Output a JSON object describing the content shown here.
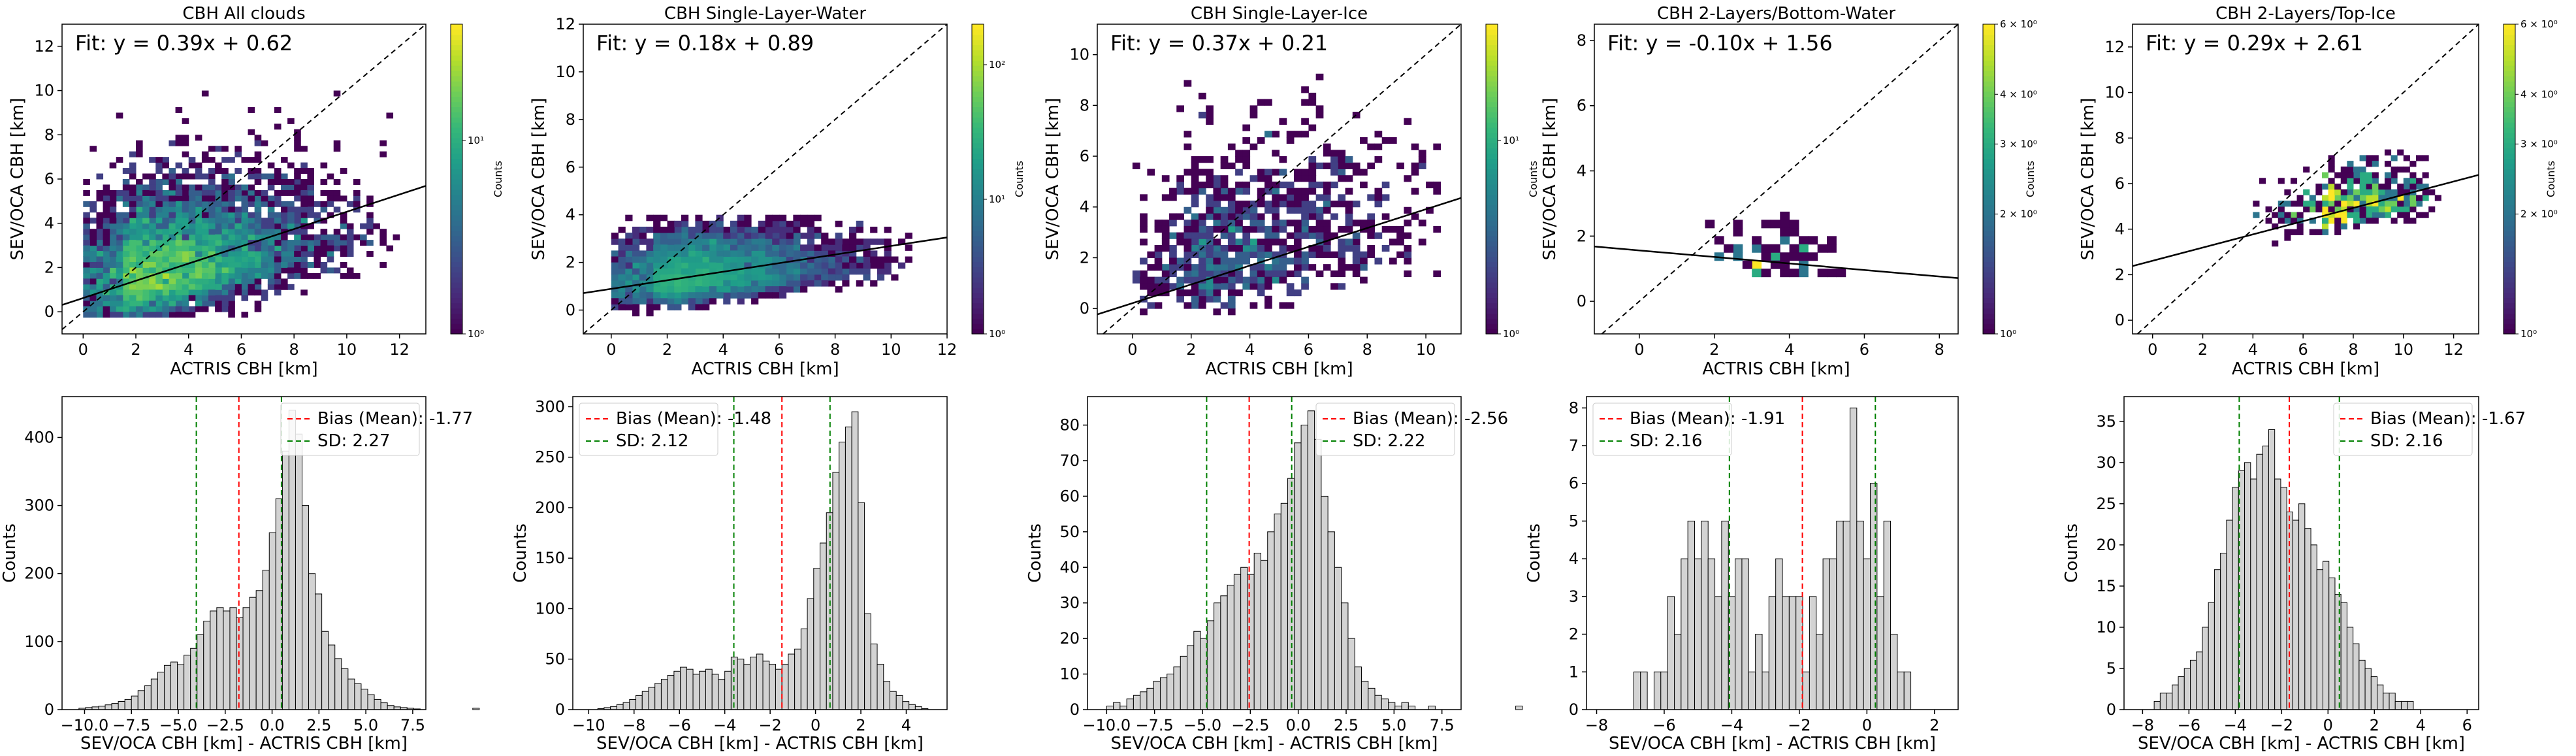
{
  "figure": {
    "colormap": "viridis",
    "hist_bar_color": "#d3d3d3",
    "bias_line_color": "#ff0000",
    "sd_line_color": "#008000"
  },
  "chart_data": [
    {
      "type": "heatmap",
      "title": "CBH All clouds",
      "xlabel": "ACTRIS CBH [km]",
      "ylabel": "SEV/OCA CBH [km]",
      "cbar_label": "Counts",
      "fit_text": "Fit: y = 0.39x + 0.62",
      "fit": {
        "slope": 0.39,
        "intercept": 0.62
      },
      "xlim": [
        -0.8,
        13.0
      ],
      "ylim": [
        -1.0,
        13.0
      ],
      "xticks": [
        0,
        2,
        4,
        6,
        8,
        10,
        12
      ],
      "yticks": [
        0,
        2,
        4,
        6,
        8,
        10,
        12
      ],
      "cbar": {
        "scale": "log",
        "range": [
          1,
          40
        ],
        "ticks": [
          {
            "v": 1,
            "label": "10⁰"
          },
          {
            "v": 10,
            "label": "10¹"
          }
        ]
      },
      "cloud": {
        "cx": 1.5,
        "cy": 0.8,
        "sx": 3.5,
        "sy": 2.2,
        "xmin": 0.0,
        "xmax": 12.0,
        "ymin": -0.2,
        "ymax": 11.5,
        "n": 5000,
        "seed": 11
      }
    },
    {
      "type": "heatmap",
      "title": "CBH Single-Layer-Water",
      "xlabel": "ACTRIS CBH [km]",
      "ylabel": "SEV/OCA CBH [km]",
      "cbar_label": "Counts",
      "fit_text": "Fit: y = 0.18x + 0.89",
      "fit": {
        "slope": 0.18,
        "intercept": 0.89
      },
      "xlim": [
        -1.0,
        12.0
      ],
      "ylim": [
        -1.0,
        12.0
      ],
      "xticks": [
        0,
        2,
        4,
        6,
        8,
        10,
        12
      ],
      "yticks": [
        0,
        2,
        4,
        6,
        8,
        10,
        12
      ],
      "cbar": {
        "scale": "log",
        "range": [
          1,
          200
        ],
        "ticks": [
          {
            "v": 1,
            "label": "10⁰"
          },
          {
            "v": 10,
            "label": "10¹"
          },
          {
            "v": 100,
            "label": "10²"
          }
        ]
      },
      "cloud": {
        "cx": 1.6,
        "cy": 0.9,
        "sx": 3.0,
        "sy": 1.1,
        "xmin": 0.0,
        "xmax": 11.0,
        "ymin": -0.2,
        "ymax": 4.0,
        "n": 4000,
        "seed": 23
      }
    },
    {
      "type": "heatmap",
      "title": "CBH Single-Layer-Ice",
      "xlabel": "ACTRIS CBH [km]",
      "ylabel": "SEV/OCA CBH [km]",
      "cbar_label": "Counts",
      "fit_text": "Fit: y = 0.37x + 0.21",
      "fit": {
        "slope": 0.37,
        "intercept": 0.21
      },
      "xlim": [
        -1.2,
        11.2
      ],
      "ylim": [
        -1.0,
        11.2
      ],
      "xticks": [
        0,
        2,
        4,
        6,
        8,
        10
      ],
      "yticks": [
        0,
        2,
        4,
        6,
        8,
        10
      ],
      "cbar": {
        "scale": "log",
        "range": [
          1,
          40
        ],
        "ticks": [
          {
            "v": 1,
            "label": "10⁰"
          },
          {
            "v": 10,
            "label": "10¹"
          }
        ]
      },
      "cloud": {
        "cx": 2.0,
        "cy": 1.0,
        "sx": 3.5,
        "sy": 2.5,
        "xmin": 0.0,
        "xmax": 10.5,
        "ymin": -0.2,
        "ymax": 10.0,
        "n": 1000,
        "seed": 37
      }
    },
    {
      "type": "heatmap",
      "title": "CBH 2-Layers/Bottom-Water",
      "xlabel": "ACTRIS CBH [km]",
      "ylabel": "SEV/OCA CBH [km]",
      "cbar_label": "Counts",
      "fit_text": "Fit: y = -0.10x + 1.56",
      "fit": {
        "slope": -0.1,
        "intercept": 1.56
      },
      "xlim": [
        -1.2,
        8.5
      ],
      "ylim": [
        -1.0,
        8.5
      ],
      "xticks": [
        0,
        2,
        4,
        6,
        8
      ],
      "yticks": [
        0,
        2,
        4,
        6,
        8
      ],
      "cbar": {
        "scale": "log",
        "range": [
          1,
          6
        ],
        "ticks": [
          {
            "v": 1,
            "label": "10⁰"
          },
          {
            "v": 2,
            "label": "2 × 10⁰"
          },
          {
            "v": 3,
            "label": "3 × 10⁰"
          },
          {
            "v": 4,
            "label": "4 × 10⁰"
          },
          {
            "v": 6,
            "label": "6 × 10⁰"
          }
        ]
      },
      "cloud": {
        "cx": 3.0,
        "cy": 1.2,
        "sx": 1.6,
        "sy": 0.7,
        "xmin": 0.5,
        "xmax": 5.8,
        "ymin": 0.0,
        "ymax": 2.8,
        "n": 70,
        "seed": 53
      }
    },
    {
      "type": "heatmap",
      "title": "CBH 2-Layers/Top-Ice",
      "xlabel": "ACTRIS CBH [km]",
      "ylabel": "SEV/OCA CBH [km]",
      "cbar_label": "Counts",
      "fit_text": "Fit: y = 0.29x + 2.61",
      "fit": {
        "slope": 0.29,
        "intercept": 2.61
      },
      "xlim": [
        -0.8,
        13.0
      ],
      "ylim": [
        -0.6,
        13.0
      ],
      "xticks": [
        0,
        2,
        4,
        6,
        8,
        10,
        12
      ],
      "yticks": [
        0,
        2,
        4,
        6,
        8,
        10,
        12
      ],
      "cbar": {
        "scale": "log",
        "range": [
          1,
          6
        ],
        "ticks": [
          {
            "v": 1,
            "label": "10⁰"
          },
          {
            "v": 2,
            "label": "2 × 10⁰"
          },
          {
            "v": 3,
            "label": "3 × 10⁰"
          },
          {
            "v": 4,
            "label": "4 × 10⁰"
          },
          {
            "v": 6,
            "label": "6 × 10⁰"
          }
        ]
      },
      "cloud": {
        "cx": 6.8,
        "cy": 4.5,
        "sx": 2.6,
        "sy": 1.1,
        "xmin": 0.5,
        "xmax": 11.5,
        "ymin": 0.5,
        "ymax": 7.5,
        "n": 500,
        "seed": 71
      }
    },
    {
      "type": "bar",
      "xlabel": "SEV/OCA CBH [km] - ACTRIS CBH [km]",
      "ylabel": "Counts",
      "legend": {
        "bias": "Bias (Mean): -1.77",
        "sd": "SD: 2.27",
        "position": "top-right"
      },
      "bias": -1.77,
      "sd": 2.27,
      "xlim": [
        -11.2,
        8.2
      ],
      "ylim": [
        0,
        460
      ],
      "xticks": [
        -10.0,
        -7.5,
        -5.0,
        -2.5,
        0.0,
        2.5,
        5.0,
        7.5
      ],
      "xtick_labels": [
        "−10.0",
        "−7.5",
        "−5.0",
        "−2.5",
        "0.0",
        "2.5",
        "5.0",
        "7.5"
      ],
      "yticks": [
        0,
        100,
        200,
        300,
        400
      ],
      "bins": {
        "start": -10.3,
        "width": 0.35,
        "values": [
          2,
          3,
          4,
          5,
          7,
          9,
          12,
          15,
          20,
          28,
          35,
          45,
          55,
          65,
          70,
          66,
          80,
          90,
          110,
          130,
          145,
          150,
          145,
          150,
          135,
          150,
          165,
          175,
          205,
          260,
          310,
          380,
          440,
          405,
          300,
          200,
          170,
          115,
          95,
          75,
          60,
          45,
          38,
          30,
          22,
          15,
          10,
          6,
          4,
          3,
          2,
          1,
          0,
          0,
          0,
          0,
          0,
          0,
          0,
          0,
          2,
          0
        ]
      }
    },
    {
      "type": "bar",
      "xlabel": "SEV/OCA CBH [km] - ACTRIS CBH [km]",
      "ylabel": "Counts",
      "legend": {
        "bias": "Bias (Mean): -1.48",
        "sd": "SD: 2.12",
        "position": "top-left"
      },
      "bias": -1.48,
      "sd": 2.12,
      "xlim": [
        -10.7,
        5.8
      ],
      "ylim": [
        0,
        310
      ],
      "xticks": [
        -10,
        -8,
        -6,
        -4,
        -2,
        0,
        2,
        4
      ],
      "xtick_labels": [
        "−10",
        "−8",
        "−6",
        "−4",
        "−2",
        "0",
        "2",
        "4"
      ],
      "yticks": [
        0,
        50,
        100,
        150,
        200,
        250,
        300
      ],
      "bins": {
        "start": -9.6,
        "width": 0.28,
        "values": [
          1,
          2,
          3,
          5,
          7,
          10,
          14,
          18,
          22,
          26,
          30,
          34,
          38,
          42,
          40,
          35,
          38,
          40,
          35,
          30,
          38,
          52,
          50,
          45,
          52,
          55,
          48,
          45,
          40,
          45,
          55,
          60,
          80,
          110,
          140,
          165,
          195,
          235,
          265,
          280,
          295,
          205,
          95,
          65,
          45,
          28,
          18,
          14,
          8,
          5,
          3,
          1
        ]
      }
    },
    {
      "type": "bar",
      "xlabel": "SEV/OCA CBH [km] - ACTRIS CBH [km]",
      "ylabel": "Counts",
      "legend": {
        "bias": "Bias (Mean): -2.56",
        "sd": "SD: 2.22",
        "position": "top-right"
      },
      "bias": -2.56,
      "sd": 2.22,
      "xlim": [
        -11.0,
        8.5
      ],
      "ylim": [
        0,
        88
      ],
      "xticks": [
        -10.0,
        -7.5,
        -5.0,
        -2.5,
        0.0,
        2.5,
        5.0,
        7.5
      ],
      "xtick_labels": [
        "−10.0",
        "−7.5",
        "−5.0",
        "−2.5",
        "0.0",
        "2.5",
        "5.0",
        "7.5"
      ],
      "yticks": [
        0,
        10,
        20,
        30,
        40,
        50,
        60,
        70,
        80
      ],
      "bins": {
        "start": -10.0,
        "width": 0.35,
        "values": [
          1,
          2,
          1,
          3,
          4,
          5,
          6,
          8,
          9,
          10,
          12,
          15,
          18,
          22,
          20,
          25,
          30,
          32,
          35,
          38,
          40,
          38,
          44,
          42,
          50,
          55,
          58,
          65,
          75,
          80,
          84,
          76,
          60,
          50,
          40,
          30,
          20,
          12,
          8,
          6,
          4,
          3,
          2,
          1,
          2,
          1,
          0,
          0,
          1,
          0,
          0,
          0,
          0,
          0,
          0,
          0,
          0,
          0,
          0,
          0,
          0,
          1,
          0
        ]
      }
    },
    {
      "type": "bar",
      "xlabel": "SEV/OCA CBH [km] - ACTRIS CBH [km]",
      "ylabel": "Counts",
      "legend": {
        "bias": "Bias (Mean): -1.91",
        "sd": "SD: 2.16",
        "position": "top-left"
      },
      "bias": -1.91,
      "sd": 2.16,
      "xlim": [
        -8.3,
        2.7
      ],
      "ylim": [
        0,
        8.3
      ],
      "xticks": [
        -8,
        -6,
        -4,
        -2,
        0,
        2
      ],
      "xtick_labels": [
        "−8",
        "−6",
        "−4",
        "−2",
        "0",
        "2"
      ],
      "yticks": [
        0,
        1,
        2,
        3,
        4,
        5,
        6,
        7,
        8
      ],
      "bins": {
        "start": -6.9,
        "width": 0.2,
        "values": [
          1,
          1,
          0,
          1,
          1,
          3,
          2,
          4,
          5,
          4,
          5,
          4,
          3,
          5,
          3,
          4,
          4,
          1,
          2,
          1,
          3,
          4,
          3,
          3,
          3,
          1,
          3,
          2,
          4,
          4,
          5,
          5,
          8,
          5,
          4,
          6,
          3,
          5,
          2,
          1,
          1
        ]
      }
    },
    {
      "type": "bar",
      "xlabel": "SEV/OCA CBH [km] - ACTRIS CBH [km]",
      "ylabel": "Counts",
      "legend": {
        "bias": "Bias (Mean): -1.67",
        "sd": "SD: 2.16",
        "position": "top-right"
      },
      "bias": -1.67,
      "sd": 2.16,
      "xlim": [
        -8.8,
        6.5
      ],
      "ylim": [
        0,
        38
      ],
      "xticks": [
        -8,
        -6,
        -4,
        -2,
        0,
        2,
        4,
        6
      ],
      "xtick_labels": [
        "−8",
        "−6",
        "−4",
        "−2",
        "0",
        "2",
        "4",
        "6"
      ],
      "yticks": [
        0,
        5,
        10,
        15,
        20,
        25,
        30,
        35
      ],
      "bins": {
        "start": -7.5,
        "width": 0.26,
        "values": [
          1,
          2,
          2,
          3,
          4,
          5,
          6,
          7,
          10,
          13,
          17,
          19,
          23,
          27,
          29,
          30,
          28,
          31,
          32,
          34,
          28,
          27,
          24,
          23,
          25,
          22,
          20,
          17,
          18,
          16,
          14,
          13,
          10,
          8,
          6,
          5,
          4,
          3,
          2,
          2,
          1,
          1,
          1
        ]
      }
    }
  ]
}
